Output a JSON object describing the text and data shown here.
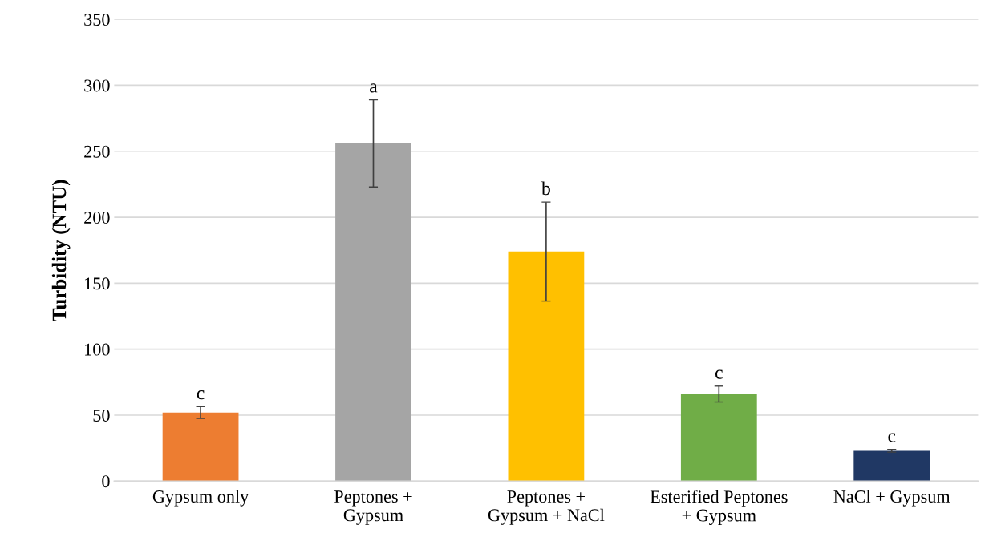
{
  "chart_data": {
    "type": "bar",
    "ylabel": "Turbidity (NTU)",
    "categories": [
      "Gypsum only",
      "Peptones +\nGypsum",
      "Peptones +\nGypsum + NaCl",
      "Esterified Peptones\n+ Gypsum",
      "NaCl + Gypsum"
    ],
    "values": [
      52,
      256,
      174,
      66,
      23
    ],
    "errors": [
      4.5,
      33,
      37.5,
      6,
      1
    ],
    "colors": [
      "#ed7d31",
      "#a5a5a5",
      "#ffc000",
      "#70ad47",
      "#203864"
    ],
    "ylim": [
      0,
      350
    ],
    "yticks": [
      0,
      50,
      100,
      150,
      200,
      250,
      300,
      350
    ],
    "grid": "y",
    "annotations": [
      {
        "text": "c",
        "x": "Gypsum only",
        "y": 56.5
      },
      {
        "text": "a",
        "x": "Peptones +\nGypsum",
        "y": 289
      },
      {
        "text": "b",
        "x": "Peptones +\nGypsum + NaCl",
        "y": 211.5
      },
      {
        "text": "c",
        "x": "Esterified Peptones\n+ Gypsum",
        "y": 72
      },
      {
        "text": "c",
        "x": "NaCl + Gypsum",
        "y": 24
      }
    ]
  }
}
